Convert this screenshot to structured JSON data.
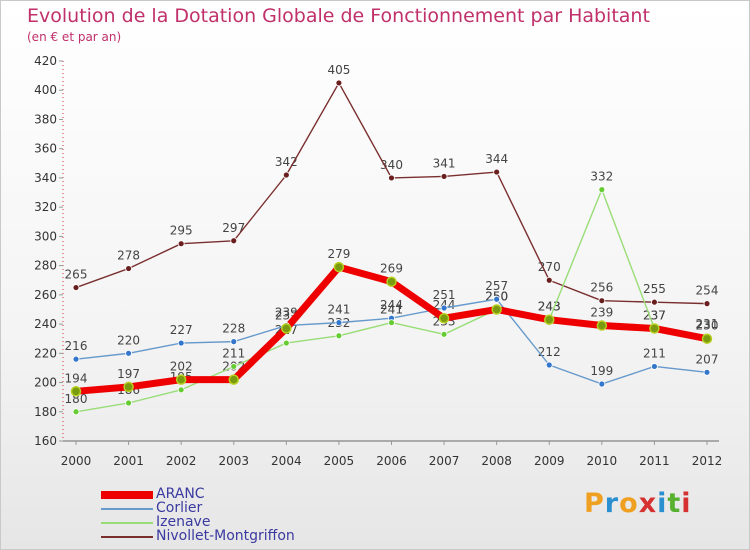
{
  "title": "Evolution de la Dotation Globale de Fonctionnement par Habitant",
  "subtitle": "(en € et par an)",
  "logo": "Proxiti",
  "logo_colors": [
    "#f0a020",
    "#2a8fd0",
    "#f0a020",
    "#d63030",
    "#2a8fd0",
    "#58b030",
    "#d63030"
  ],
  "chart_data": {
    "type": "line",
    "x": [
      "2000",
      "2001",
      "2002",
      "2003",
      "2004",
      "2005",
      "2006",
      "2007",
      "2008",
      "2009",
      "2010",
      "2011",
      "2012"
    ],
    "ylim": [
      160,
      420
    ],
    "yticks": [
      160,
      180,
      200,
      220,
      240,
      260,
      280,
      300,
      320,
      340,
      360,
      380,
      400,
      420
    ],
    "grid": false,
    "legend_position": "bottom-left",
    "series": [
      {
        "name": "Nivollet-Montgriffon",
        "color": "#7a2f2f",
        "marker": "#6a1f1f",
        "width": 1.4,
        "values": [
          265,
          278,
          295,
          297,
          342,
          405,
          340,
          341,
          344,
          270,
          256,
          255,
          254
        ]
      },
      {
        "name": "Corlier",
        "color": "#6699cc",
        "marker": "#3377cc",
        "width": 1.4,
        "values": [
          216,
          220,
          227,
          228,
          239,
          241,
          244,
          251,
          257,
          212,
          199,
          211,
          207
        ]
      },
      {
        "name": "Izenave",
        "color": "#99dd77",
        "marker": "#66cc33",
        "width": 1.4,
        "values": [
          180,
          186,
          195,
          211,
          227,
          232,
          241,
          233,
          250,
          243,
          332,
          237,
          231
        ]
      },
      {
        "name": "ARANC",
        "color": "#ee0000",
        "marker": "#7a9a10",
        "width": 7,
        "values": [
          194,
          197,
          202,
          202,
          237,
          279,
          269,
          244,
          250,
          243,
          239,
          237,
          230
        ]
      }
    ]
  }
}
